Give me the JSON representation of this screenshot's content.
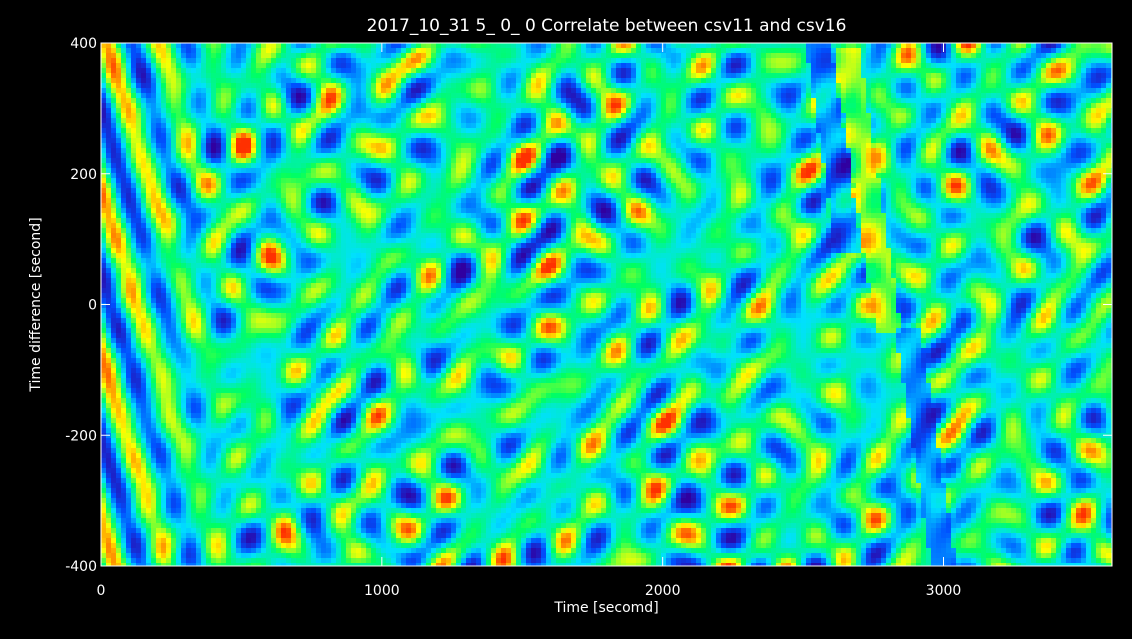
{
  "chart_data": {
    "type": "heatmap",
    "title": "2017_10_31  5_ 0_ 0 Correlate between csv11 and csv16",
    "xlabel": "Time [secomd]",
    "ylabel": "Time difference [second]",
    "xlim": [
      0,
      3600
    ],
    "ylim": [
      -400,
      400
    ],
    "x_ticks": [
      0,
      1000,
      2000,
      3000
    ],
    "x_tick_labels": [
      "0",
      "1000",
      "2000",
      "3000"
    ],
    "y_ticks": [
      -400,
      -200,
      0,
      200,
      400
    ],
    "y_tick_labels": [
      "-400",
      "-200",
      "0",
      "200",
      "400"
    ],
    "colormap": [
      "#3000a0",
      "#0050ff",
      "#00e0ff",
      "#00ff60",
      "#ffff00",
      "#ff3000"
    ],
    "background": "#000000"
  }
}
